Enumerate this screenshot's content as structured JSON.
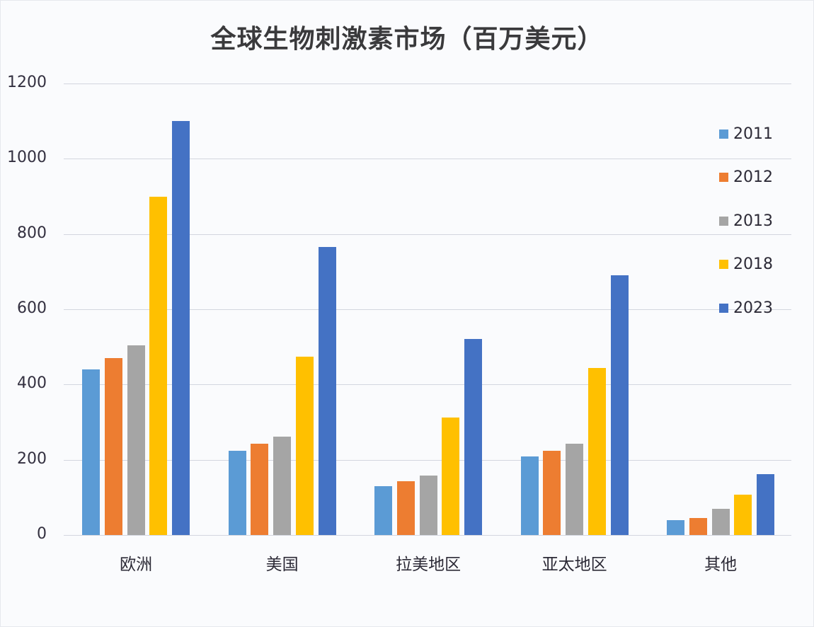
{
  "chart_data": {
    "type": "bar",
    "title": "全球生物刺激素市场（百万美元）",
    "xlabel": "",
    "ylabel": "",
    "ylim": [
      0,
      1200
    ],
    "yticks": [
      0,
      200,
      400,
      600,
      800,
      1000,
      1200
    ],
    "grid": true,
    "legend_position": "right",
    "categories": [
      "欧洲",
      "美国",
      "拉美地区",
      "亚太地区",
      "其他"
    ],
    "series": [
      {
        "name": "2011",
        "color": "#5b9bd5",
        "values": [
          440,
          224,
          130,
          209,
          40
        ]
      },
      {
        "name": "2012",
        "color": "#ed7d31",
        "values": [
          470,
          243,
          143,
          224,
          45
        ]
      },
      {
        "name": "2013",
        "color": "#a5a5a5",
        "values": [
          505,
          261,
          158,
          242,
          70
        ]
      },
      {
        "name": "2018",
        "color": "#ffc000",
        "values": [
          900,
          474,
          312,
          444,
          107
        ]
      },
      {
        "name": "2023",
        "color": "#4472c4",
        "values": [
          1100,
          766,
          521,
          690,
          162
        ]
      }
    ]
  }
}
